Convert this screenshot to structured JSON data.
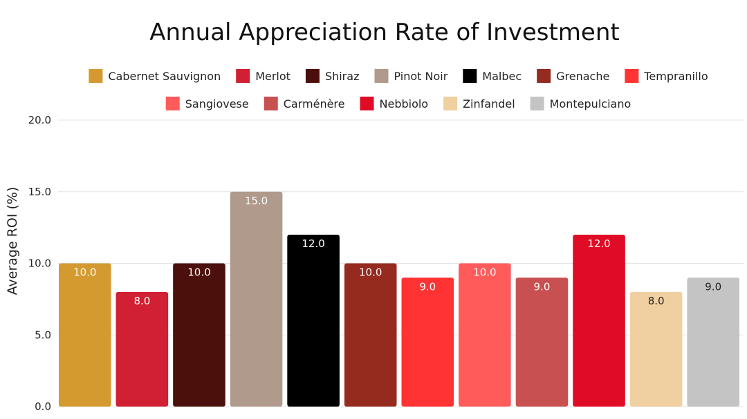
{
  "chart_data": {
    "type": "bar",
    "title": "Annual Appreciation Rate of Investment",
    "xlabel": "",
    "ylabel": "Average ROI (%)",
    "ylim": [
      0,
      20
    ],
    "yticks": [
      "0.0",
      "5.0",
      "10.0",
      "15.0",
      "20.0"
    ],
    "grid": true,
    "legend_position": "top",
    "categories": [
      "Cabernet Sauvignon",
      "Merlot",
      "Shiraz",
      "Pinot Noir",
      "Malbec",
      "Grenache",
      "Tempranillo",
      "Sangiovese",
      "Carménère",
      "Nebbiolo",
      "Zinfandel",
      "Montepulciano"
    ],
    "values": [
      10.0,
      8.0,
      10.0,
      15.0,
      12.0,
      10.0,
      9.0,
      10.0,
      9.0,
      12.0,
      8.0,
      9.0
    ],
    "value_labels": [
      "10.0",
      "8.0",
      "10.0",
      "15.0",
      "12.0",
      "10.0",
      "9.0",
      "10.0",
      "9.0",
      "12.0",
      "8.0",
      "9.0"
    ],
    "colors": [
      "#d4992f",
      "#d11f33",
      "#4b100c",
      "#b09a8c",
      "#000000",
      "#952a1f",
      "#ff3333",
      "#ff5b5b",
      "#c95050",
      "#e00b25",
      "#f0cfa0",
      "#c4c4c4"
    ],
    "label_colors": [
      "#ffffff",
      "#ffffff",
      "#ffffff",
      "#ffffff",
      "#ffffff",
      "#ffffff",
      "#ffffff",
      "#ffffff",
      "#ffffff",
      "#ffffff",
      "#222222",
      "#222222"
    ]
  }
}
